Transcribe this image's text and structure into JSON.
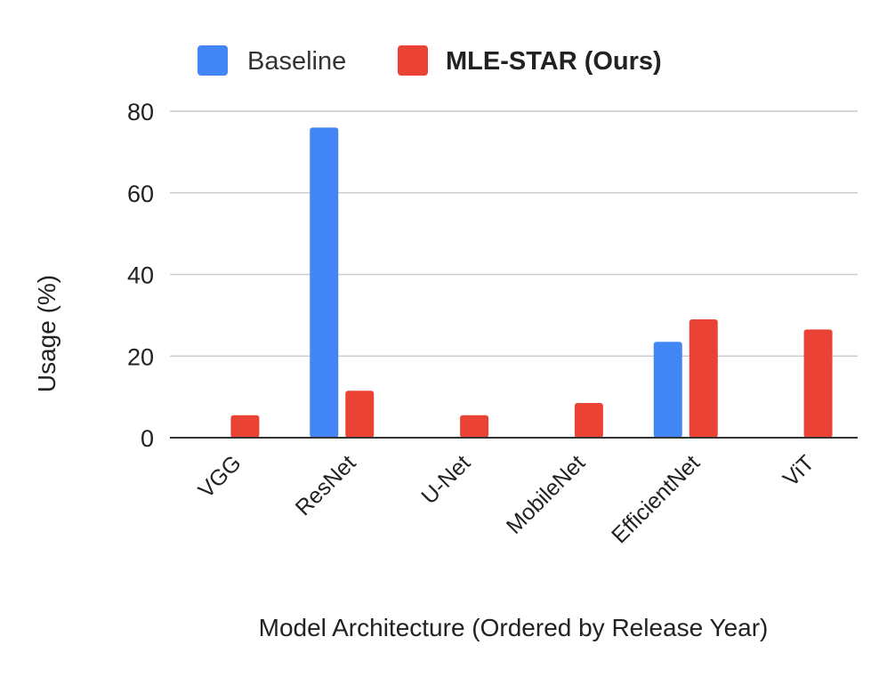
{
  "chart_data": {
    "type": "bar",
    "title": "",
    "categories": [
      "VGG",
      "ResNet",
      "U-Net",
      "MobileNet",
      "EfficientNet",
      "ViT"
    ],
    "series": [
      {
        "name": "Baseline",
        "color": "#4285F4",
        "values": [
          0,
          76,
          0,
          0,
          23.5,
          0
        ]
      },
      {
        "name": "MLE-STAR (Ours)",
        "color": "#EA4335",
        "values": [
          5.5,
          11.5,
          5.5,
          8.5,
          29,
          26.5
        ]
      }
    ],
    "xlabel": "Model Architecture (Ordered by Release Year)",
    "ylabel": "Usage (%)",
    "ylim": [
      0,
      80
    ],
    "yticks": [
      0,
      20,
      40,
      60,
      80
    ],
    "grid": true,
    "legend": "top-center"
  }
}
